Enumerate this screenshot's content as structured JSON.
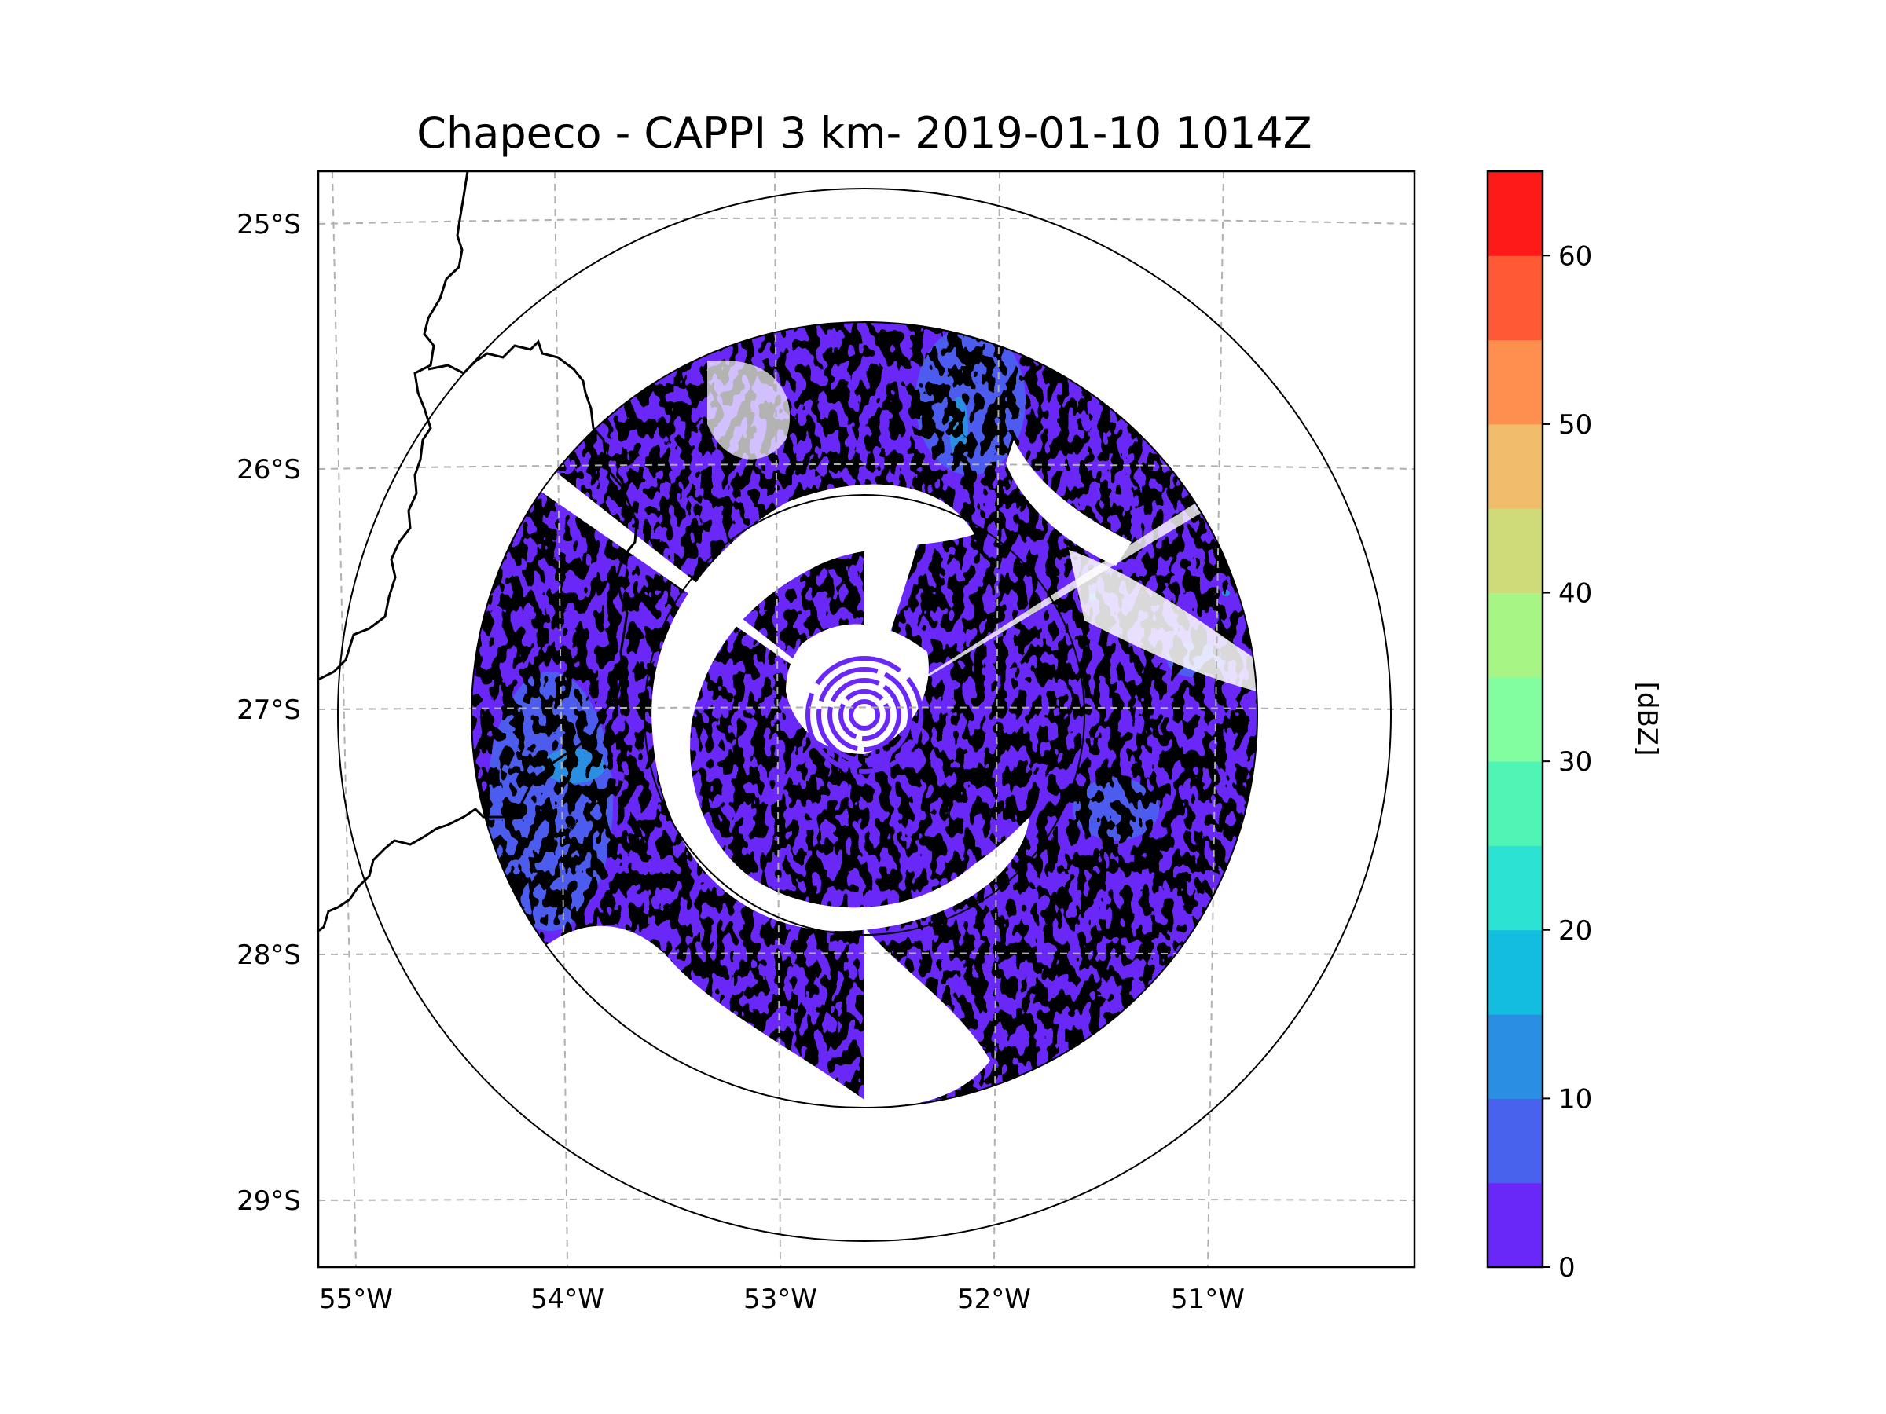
{
  "chart_data": {
    "type": "heatmap",
    "title": "Chapeco - CAPPI 3 km- 2019-01-10 1014Z",
    "station": "Chapeco",
    "product": "CAPPI 3 km",
    "datetime": "2019-01-10 1014Z",
    "x_ticks": [
      "55°W",
      "54°W",
      "53°W",
      "52°W",
      "51°W"
    ],
    "y_ticks": [
      "25°S",
      "26°S",
      "27°S",
      "28°S",
      "29°S"
    ],
    "lon_range": [
      -55.2,
      -50.1
    ],
    "lat_range": [
      -29.3,
      -24.8
    ],
    "radar_center": {
      "lon": -52.6,
      "lat": -27.0
    },
    "range_rings_deg": [
      1.0,
      1.9,
      2.7
    ],
    "grid": true,
    "colorbar": {
      "label": "[dBZ]",
      "min": 0,
      "max": 65,
      "step": 5,
      "tick_labels": [
        "0",
        "10",
        "20",
        "30",
        "40",
        "50",
        "60"
      ],
      "colors": [
        "#6a28f8",
        "#4962ed",
        "#2a8fe3",
        "#12bde0",
        "#2ce2d2",
        "#50f4b5",
        "#82fda0",
        "#a6f585",
        "#cfdb78",
        "#f2bd6b",
        "#ff8f4f",
        "#ff5a35",
        "#ff1a1a"
      ]
    },
    "echo": {
      "dominant_dbz": "0-5",
      "secondary_dbz": "5-15",
      "isolated_dbz": "15-25"
    }
  }
}
